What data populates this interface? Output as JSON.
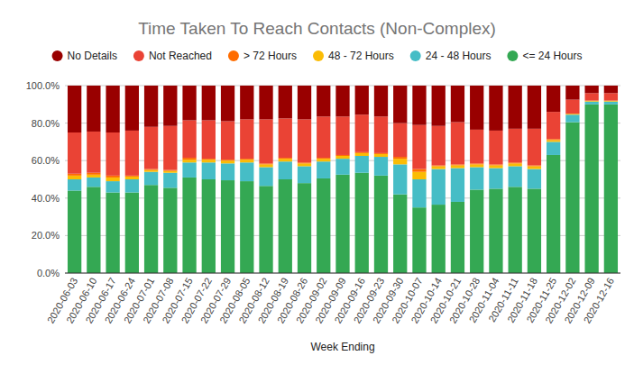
{
  "chart_data": {
    "type": "bar",
    "title": "Time Taken To Reach Contacts (Non-Complex)",
    "x_label": "Week Ending",
    "stacked": true,
    "grid": true,
    "legend": "top",
    "categories": [
      "2020-06-03",
      "2020-06-10",
      "2020-06-17",
      "2020-06-24",
      "2020-07-01",
      "2020-07-08",
      "2020-07-15",
      "2020-07-22",
      "2020-07-29",
      "2020-08-05",
      "2020-08-12",
      "2020-08-19",
      "2020-08-26",
      "2020-09-02",
      "2020-09-09",
      "2020-09-16",
      "2020-09-23",
      "2020-09-30",
      "2020-10-07",
      "2020-10-14",
      "2020-10-21",
      "2020-10-28",
      "2020-11-04",
      "2020-11-11",
      "2020-11-18",
      "2020-11-25",
      "2020-12-02",
      "2020-12-09",
      "2020-12-16"
    ],
    "ylim": [
      0,
      100
    ],
    "yticks": [
      {
        "value": 0,
        "label": "0.0%"
      },
      {
        "value": 20,
        "label": "20.0%"
      },
      {
        "value": 40,
        "label": "40.0%"
      },
      {
        "value": 60,
        "label": "60.0%"
      },
      {
        "value": 80,
        "label": "80.0%"
      },
      {
        "value": 100,
        "label": "100.0%"
      }
    ],
    "series": [
      {
        "name": "No Details",
        "color": "#990000",
        "values": [
          25,
          24.5,
          25,
          24,
          22,
          21.5,
          18.5,
          18.5,
          19,
          18,
          18,
          17.5,
          18,
          16.5,
          16.5,
          15.5,
          16.5,
          20,
          21,
          21.5,
          19.5,
          23.5,
          24,
          23,
          23,
          14,
          7.5,
          4,
          4
        ]
      },
      {
        "name": "Not Reached",
        "color": "#ea4335",
        "values": [
          22,
          22,
          23,
          24,
          22.5,
          23.5,
          20,
          20.5,
          20.5,
          21,
          23.5,
          21,
          23,
          22,
          20.5,
          20,
          19.5,
          18,
          23.5,
          21,
          22.5,
          18,
          18,
          18,
          19.5,
          14.5,
          7.5,
          4,
          4
        ]
      },
      {
        "name": "> 72 Hours",
        "color": "#ff6d01",
        "values": [
          1,
          1,
          1,
          0.5,
          0.5,
          0.5,
          1,
          0.5,
          0.5,
          0.5,
          0.5,
          0.5,
          0.5,
          0.5,
          0.5,
          0.5,
          0.5,
          1,
          1.5,
          0.5,
          0.5,
          0.5,
          0.5,
          0.5,
          0.5,
          0.5,
          0,
          0,
          0
        ]
      },
      {
        "name": "48 - 72 Hours",
        "color": "#fbbc04",
        "values": [
          2,
          1.5,
          2,
          1.5,
          1,
          1,
          1.5,
          1.5,
          1.5,
          1.5,
          1.5,
          1.5,
          1.5,
          1.5,
          1.5,
          1.5,
          1.5,
          3,
          4,
          1.5,
          1.5,
          1.5,
          1.5,
          1.5,
          1.5,
          1,
          0.5,
          0.5,
          0.5
        ]
      },
      {
        "name": "24 - 48 Hours",
        "color": "#46bdc6",
        "values": [
          6,
          5,
          6,
          7,
          7,
          8,
          8,
          9,
          9,
          10,
          10,
          9.5,
          9,
          9,
          8.5,
          9,
          10,
          16,
          15,
          19,
          18,
          12,
          11,
          11,
          10.5,
          7,
          4,
          1.5,
          1.5
        ]
      },
      {
        "name": "<= 24 Hours",
        "color": "#34a853",
        "values": [
          44,
          46,
          43,
          43,
          47,
          45.5,
          51,
          50,
          49.5,
          49,
          46.5,
          50,
          48,
          50.5,
          52.5,
          53.5,
          52,
          42,
          35,
          36.5,
          38,
          44.5,
          45,
          46,
          45,
          63,
          80.5,
          90,
          90
        ]
      }
    ]
  }
}
